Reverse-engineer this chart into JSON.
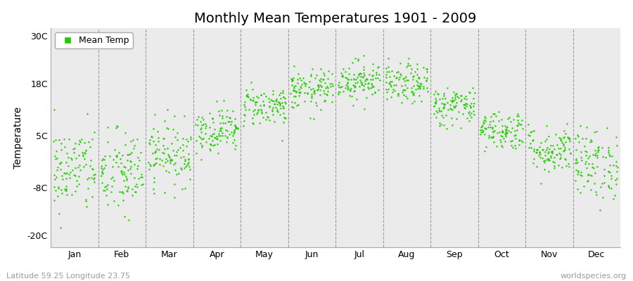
{
  "title": "Monthly Mean Temperatures 1901 - 2009",
  "ylabel": "Temperature",
  "yticks": [
    -20,
    -8,
    5,
    18,
    30
  ],
  "ytick_labels": [
    "-20C",
    "-8C",
    "5C",
    "18C",
    "30C"
  ],
  "ylim": [
    -23,
    32
  ],
  "months": [
    "Jan",
    "Feb",
    "Mar",
    "Apr",
    "May",
    "Jun",
    "Jul",
    "Aug",
    "Sep",
    "Oct",
    "Nov",
    "Dec"
  ],
  "dot_color": "#22cc00",
  "background_color": "#ffffff",
  "plot_bg_color": "#ebebeb",
  "legend_label": "Mean Temp",
  "footer_left": "Latitude 59.25 Longitude 23.75",
  "footer_right": "worldspecies.org",
  "monthly_means": [
    -3.5,
    -4.5,
    0.5,
    6.5,
    12.5,
    16.5,
    19.0,
    18.0,
    12.5,
    6.5,
    1.5,
    -2.0
  ],
  "monthly_spreads": [
    5.5,
    5.5,
    4.0,
    2.8,
    2.5,
    2.5,
    2.5,
    2.5,
    2.5,
    2.5,
    3.0,
    4.5
  ],
  "n_years": 109,
  "dot_size": 3,
  "title_fontsize": 14,
  "axis_fontsize": 9,
  "ylabel_fontsize": 10
}
